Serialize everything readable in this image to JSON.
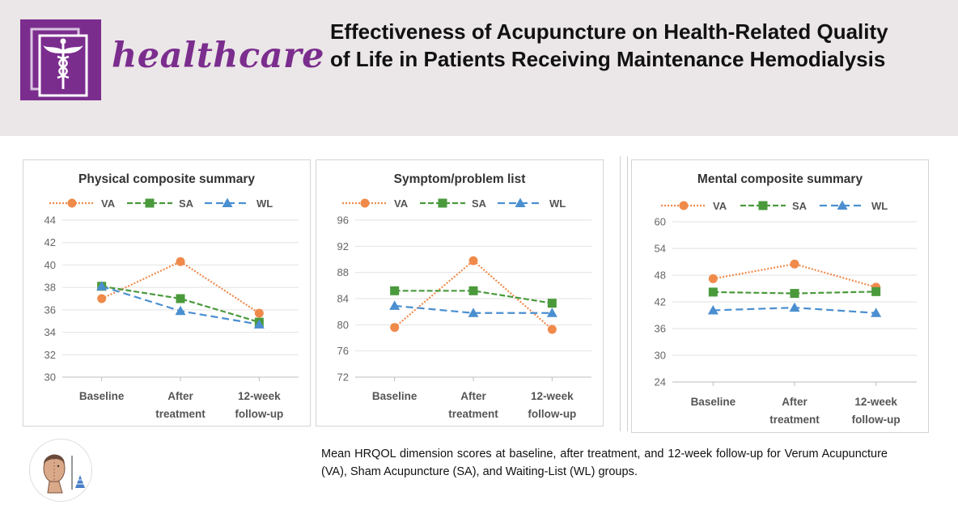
{
  "journal": {
    "name": "healthcare"
  },
  "article": {
    "title": "Effectiveness of Acupuncture on Health-Related Quality of Life in Patients Receiving Maintenance Hemodialysis"
  },
  "caption": "Mean HRQOL dimension scores at baseline, after treatment, and 12-week follow-up for Verum Acupuncture (VA), Sham Acupuncture (SA), and Waiting-List (WL) groups.",
  "colors": {
    "brand": "#7b2d8e",
    "VA": "#f08a4b",
    "SA": "#4a9a3c",
    "WL": "#4a8fd0"
  },
  "chart_data": [
    {
      "type": "line",
      "title": "Physical composite summary",
      "categories": [
        [
          "Baseline"
        ],
        [
          "After",
          "treatment"
        ],
        [
          "12-week",
          "follow-up"
        ]
      ],
      "ylim": [
        30,
        44
      ],
      "yticks": [
        30,
        32,
        34,
        36,
        38,
        40,
        42,
        44
      ],
      "grid": true,
      "legend": "top",
      "series": [
        {
          "name": "VA",
          "values": [
            37.0,
            40.3,
            35.7
          ],
          "marker": "circle",
          "dash": "dotted"
        },
        {
          "name": "SA",
          "values": [
            38.1,
            37.0,
            34.9
          ],
          "marker": "square",
          "dash": "dashed"
        },
        {
          "name": "WL",
          "values": [
            38.1,
            35.9,
            34.7
          ],
          "marker": "triangle",
          "dash": "longdash"
        }
      ]
    },
    {
      "type": "line",
      "title": "Symptom/problem list",
      "categories": [
        [
          "Baseline"
        ],
        [
          "After",
          "treatment"
        ],
        [
          "12-week",
          "follow-up"
        ]
      ],
      "ylim": [
        72,
        96
      ],
      "yticks": [
        72,
        76,
        80,
        84,
        88,
        92,
        96
      ],
      "grid": true,
      "legend": "top",
      "series": [
        {
          "name": "VA",
          "values": [
            79.6,
            89.8,
            79.3
          ],
          "marker": "circle",
          "dash": "dotted"
        },
        {
          "name": "SA",
          "values": [
            85.2,
            85.2,
            83.3
          ],
          "marker": "square",
          "dash": "dashed"
        },
        {
          "name": "WL",
          "values": [
            82.9,
            81.8,
            81.8
          ],
          "marker": "triangle",
          "dash": "longdash"
        }
      ]
    },
    {
      "type": "line",
      "title": "Mental composite summary",
      "categories": [
        [
          "Baseline"
        ],
        [
          "After",
          "treatment"
        ],
        [
          "12-week",
          "follow-up"
        ]
      ],
      "ylim": [
        24,
        60
      ],
      "yticks": [
        24,
        30,
        36,
        42,
        48,
        54,
        60
      ],
      "grid": true,
      "legend": "top",
      "series": [
        {
          "name": "VA",
          "values": [
            47.2,
            50.5,
            45.3
          ],
          "marker": "circle",
          "dash": "dotted"
        },
        {
          "name": "SA",
          "values": [
            44.2,
            43.9,
            44.3
          ],
          "marker": "square",
          "dash": "dashed"
        },
        {
          "name": "WL",
          "values": [
            40.1,
            40.7,
            39.5
          ],
          "marker": "triangle",
          "dash": "longdash"
        }
      ]
    }
  ]
}
